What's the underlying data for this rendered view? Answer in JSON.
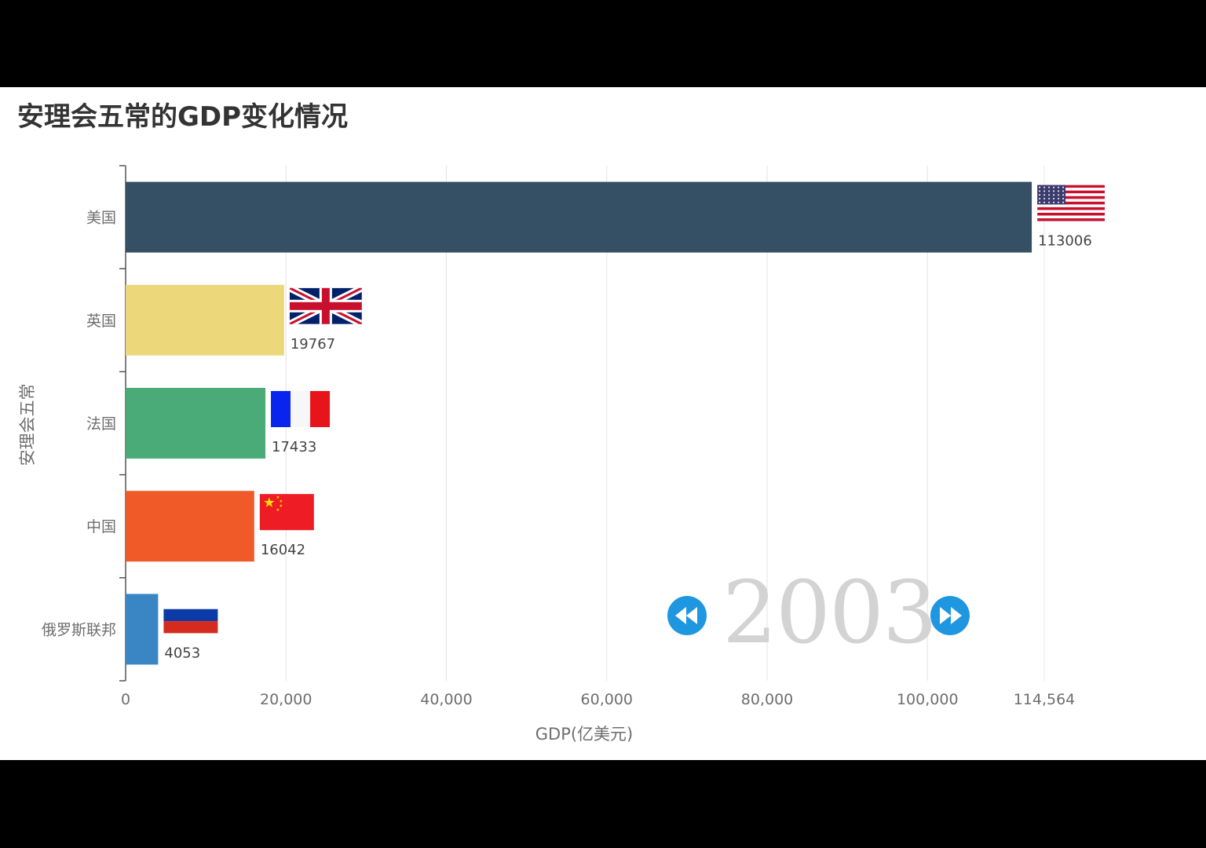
{
  "chart_data": {
    "type": "bar",
    "orientation": "horizontal",
    "title": "安理会五常的GDP变化情况",
    "xlabel": "GDP(亿美元)",
    "ylabel": "安理会五常",
    "xlim": [
      0,
      114564
    ],
    "x_ticks": [
      "0",
      "20,000",
      "40,000",
      "60,000",
      "80,000",
      "100,000",
      "114,564"
    ],
    "x_tick_values": [
      0,
      20000,
      40000,
      60000,
      80000,
      100000,
      114564
    ],
    "grid": true,
    "categories": [
      "美国",
      "英国",
      "法国",
      "中国",
      "俄罗斯联邦"
    ],
    "values": [
      113006,
      19767,
      17433,
      16042,
      4053
    ],
    "value_labels": [
      "113006",
      "19767",
      "17433",
      "16042",
      "4053"
    ],
    "colors": [
      "#354f65",
      "#ecd87a",
      "#4aaa78",
      "#f05a29",
      "#3a86c4"
    ],
    "flags": [
      "us-flag-icon",
      "uk-flag-icon",
      "france-flag-icon",
      "china-flag-icon",
      "russia-flag-icon"
    ]
  },
  "timeline": {
    "year": "2003",
    "prev_icon": "rewind-icon",
    "next_icon": "fast-forward-icon",
    "button_color": "#1e97e0"
  }
}
